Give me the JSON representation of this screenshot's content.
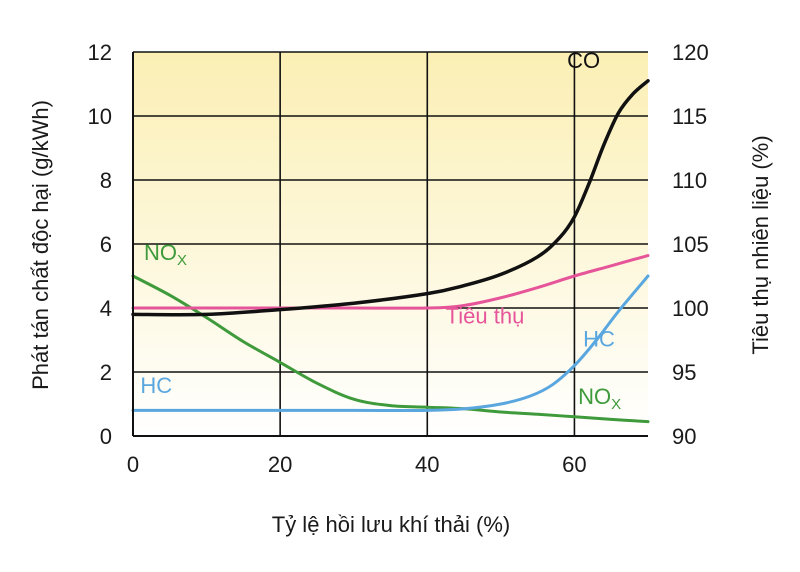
{
  "chart_data": {
    "type": "line",
    "xlabel": "Tỷ lệ hồi lưu khí thải (%)",
    "ylabel": "Phát tán chất độc hại (g/kWh)",
    "y2label": "Tiêu thụ nhiên liệu (%)",
    "xlim": [
      0,
      70
    ],
    "ylim": [
      0,
      12
    ],
    "y2lim": [
      90,
      120
    ],
    "x_ticks": [
      "0",
      "20",
      "40",
      "60"
    ],
    "y_ticks": [
      "0",
      "2",
      "4",
      "6",
      "8",
      "10",
      "12"
    ],
    "y2_ticks": [
      "90",
      "95",
      "100",
      "105",
      "110",
      "115",
      "120"
    ],
    "grid": true,
    "colors": {
      "background_top": "#fbefb4",
      "background_bottom": "#ffffff",
      "grid": "#111111",
      "CO": "#111111",
      "Tiêu thụ": "#e6559a",
      "HC": "#5aa7e0",
      "NOx": "#3e9a3a"
    },
    "series": [
      {
        "name": "CO",
        "label": "CO",
        "axis": "left",
        "x": [
          0,
          10,
          20,
          30,
          40,
          45,
          50,
          55,
          58,
          60,
          62,
          64,
          66,
          68,
          70
        ],
        "y": [
          3.8,
          3.8,
          3.95,
          4.15,
          4.45,
          4.7,
          5.05,
          5.6,
          6.2,
          6.85,
          7.9,
          9.1,
          10.1,
          10.7,
          11.1
        ]
      },
      {
        "name": "Tiêu thụ",
        "label": "Tiêu thụ",
        "axis": "right",
        "x": [
          0,
          10,
          20,
          30,
          40,
          45,
          50,
          55,
          60,
          65,
          70
        ],
        "y": [
          100.0,
          100.0,
          100.0,
          100.0,
          100.0,
          100.2,
          100.8,
          101.6,
          102.5,
          103.3,
          104.1
        ]
      },
      {
        "name": "HC",
        "label": "HC",
        "axis": "left",
        "x": [
          0,
          10,
          20,
          30,
          40,
          45,
          50,
          54,
          57,
          60,
          63,
          66,
          70
        ],
        "y": [
          0.8,
          0.8,
          0.8,
          0.8,
          0.8,
          0.85,
          1.0,
          1.25,
          1.6,
          2.2,
          3.0,
          3.9,
          5.0
        ]
      },
      {
        "name": "NOx",
        "label": "NO",
        "label_sub": "X",
        "axis": "left",
        "x": [
          0,
          5,
          10,
          15,
          20,
          25,
          30,
          35,
          40,
          45,
          50,
          55,
          60,
          65,
          70
        ],
        "y": [
          5.0,
          4.4,
          3.7,
          2.95,
          2.3,
          1.65,
          1.15,
          0.95,
          0.9,
          0.85,
          0.75,
          0.68,
          0.6,
          0.52,
          0.45
        ]
      }
    ]
  }
}
